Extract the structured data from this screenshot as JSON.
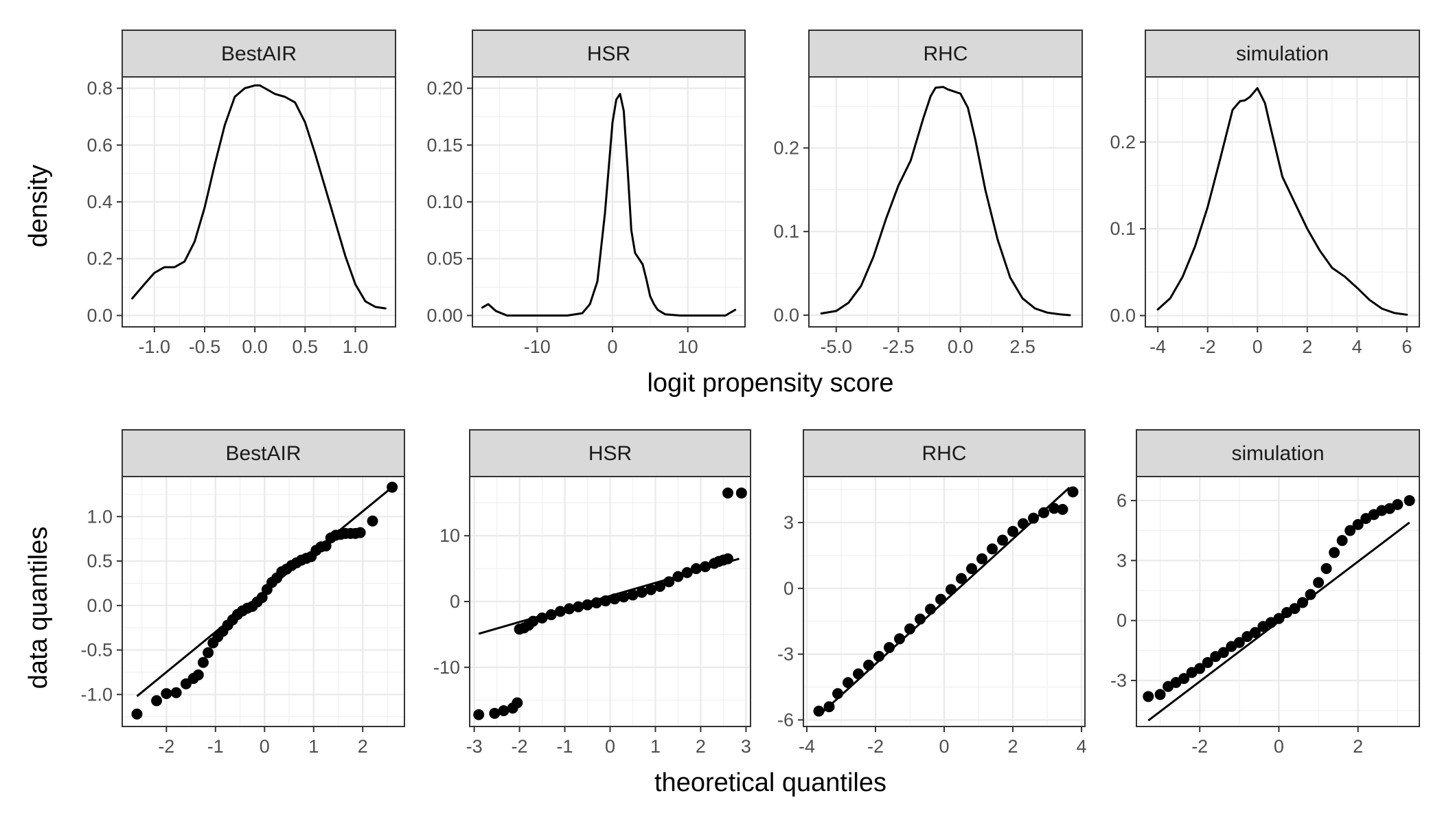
{
  "chart_data": [
    {
      "type": "line",
      "row": "density",
      "panel": "BestAIR",
      "ylabel": "density",
      "xlim": [
        -1.32,
        1.4
      ],
      "ylim": [
        -0.04,
        0.84
      ],
      "x_ticks": [
        -1.0,
        -0.5,
        0.0,
        0.5,
        1.0
      ],
      "x_tick_labels": [
        "-1.0",
        "-0.5",
        "0.0",
        "0.5",
        "1.0"
      ],
      "y_ticks": [
        0.0,
        0.2,
        0.4,
        0.6,
        0.8
      ],
      "y_tick_labels": [
        "0.0",
        "0.2",
        "0.4",
        "0.6",
        "0.8"
      ],
      "x": [
        -1.22,
        -1.1,
        -1.0,
        -0.9,
        -0.8,
        -0.7,
        -0.6,
        -0.5,
        -0.4,
        -0.3,
        -0.2,
        -0.1,
        0.0,
        0.05,
        0.1,
        0.2,
        0.3,
        0.4,
        0.5,
        0.6,
        0.7,
        0.8,
        0.9,
        1.0,
        1.1,
        1.2,
        1.3
      ],
      "y": [
        0.06,
        0.11,
        0.15,
        0.17,
        0.17,
        0.19,
        0.26,
        0.38,
        0.53,
        0.67,
        0.77,
        0.8,
        0.81,
        0.81,
        0.8,
        0.78,
        0.77,
        0.75,
        0.68,
        0.57,
        0.45,
        0.33,
        0.21,
        0.11,
        0.05,
        0.03,
        0.025
      ]
    },
    {
      "type": "line",
      "row": "density",
      "panel": "HSR",
      "xlim": [
        -18.6,
        17.6
      ],
      "ylim": [
        -0.01,
        0.21
      ],
      "x_ticks": [
        -10,
        0,
        10
      ],
      "x_tick_labels": [
        "-10",
        "0",
        "10"
      ],
      "y_ticks": [
        0.0,
        0.05,
        0.1,
        0.15,
        0.2
      ],
      "y_tick_labels": [
        "0.00",
        "0.05",
        "0.10",
        "0.15",
        "0.20"
      ],
      "x": [
        -17.3,
        -16.5,
        -15.5,
        -14,
        -10,
        -6,
        -4,
        -3,
        -2,
        -1,
        0,
        0.5,
        1,
        1.5,
        2,
        2.5,
        3,
        3.5,
        4,
        4.5,
        5,
        5.5,
        6,
        7,
        9,
        12,
        15,
        16.3
      ],
      "y": [
        0.007,
        0.01,
        0.004,
        0.0,
        0.0,
        0.0,
        0.002,
        0.01,
        0.03,
        0.09,
        0.17,
        0.19,
        0.195,
        0.18,
        0.13,
        0.075,
        0.055,
        0.05,
        0.045,
        0.032,
        0.017,
        0.01,
        0.005,
        0.001,
        0.0,
        0.0,
        0.0,
        0.005
      ]
    },
    {
      "type": "line",
      "row": "density",
      "panel": "RHC",
      "xlim": [
        -6.1,
        4.9
      ],
      "ylim": [
        -0.014,
        0.285
      ],
      "x_ticks": [
        -5.0,
        -2.5,
        0.0,
        2.5
      ],
      "x_tick_labels": [
        "-5.0",
        "-2.5",
        "0.0",
        "2.5"
      ],
      "y_ticks": [
        0.0,
        0.1,
        0.2
      ],
      "y_tick_labels": [
        "0.0",
        "0.1",
        "0.2"
      ],
      "x": [
        -5.6,
        -5.0,
        -4.5,
        -4.0,
        -3.5,
        -3.0,
        -2.5,
        -2.0,
        -1.5,
        -1.2,
        -1.0,
        -0.7,
        -0.5,
        -0.3,
        0.0,
        0.3,
        0.6,
        1.0,
        1.5,
        2.0,
        2.5,
        3.0,
        3.5,
        4.0,
        4.4
      ],
      "y": [
        0.002,
        0.005,
        0.015,
        0.035,
        0.07,
        0.115,
        0.155,
        0.185,
        0.235,
        0.262,
        0.272,
        0.273,
        0.27,
        0.268,
        0.265,
        0.248,
        0.21,
        0.15,
        0.09,
        0.045,
        0.02,
        0.008,
        0.003,
        0.001,
        0.0
      ]
    },
    {
      "type": "line",
      "row": "density",
      "panel": "simulation",
      "xlim": [
        -4.5,
        6.5
      ],
      "ylim": [
        -0.013,
        0.275
      ],
      "x_ticks": [
        -4,
        -2,
        0,
        2,
        4,
        6
      ],
      "x_tick_labels": [
        "-4",
        "-2",
        "0",
        "2",
        "4",
        "6"
      ],
      "y_ticks": [
        0.0,
        0.1,
        0.2
      ],
      "y_tick_labels": [
        "0.0",
        "0.1",
        "0.2"
      ],
      "x": [
        -4.0,
        -3.5,
        -3.0,
        -2.5,
        -2.0,
        -1.5,
        -1.0,
        -0.7,
        -0.5,
        -0.3,
        0.0,
        0.3,
        0.5,
        1.0,
        1.5,
        2.0,
        2.5,
        3.0,
        3.5,
        4.0,
        4.5,
        5.0,
        5.5,
        6.0
      ],
      "y": [
        0.007,
        0.02,
        0.045,
        0.08,
        0.125,
        0.18,
        0.237,
        0.247,
        0.248,
        0.252,
        0.262,
        0.245,
        0.22,
        0.16,
        0.13,
        0.1,
        0.075,
        0.055,
        0.045,
        0.032,
        0.018,
        0.008,
        0.003,
        0.001
      ]
    },
    {
      "type": "scatter",
      "row": "qq",
      "panel": "BestAIR",
      "ylabel": "data quantiles",
      "xlim": [
        -2.9,
        2.85
      ],
      "ylim": [
        -1.36,
        1.45
      ],
      "x_ticks": [
        -2,
        -1,
        0,
        1,
        2
      ],
      "x_tick_labels": [
        "-2",
        "-1",
        "0",
        "1",
        "2"
      ],
      "y_ticks": [
        -1.0,
        -0.5,
        0.0,
        0.5,
        1.0
      ],
      "y_tick_labels": [
        "-1.0",
        "-0.5",
        "0.0",
        "0.5",
        "1.0"
      ],
      "points_x": [
        -2.6,
        -2.2,
        -2.0,
        -1.8,
        -1.6,
        -1.45,
        -1.35,
        -1.25,
        -1.15,
        -1.05,
        -0.95,
        -0.85,
        -0.75,
        -0.65,
        -0.55,
        -0.45,
        -0.35,
        -0.25,
        -0.15,
        -0.05,
        0.05,
        0.15,
        0.25,
        0.35,
        0.45,
        0.55,
        0.65,
        0.75,
        0.85,
        0.95,
        1.05,
        1.15,
        1.25,
        1.35,
        1.45,
        1.55,
        1.65,
        1.75,
        1.85,
        1.95,
        2.2,
        2.6
      ],
      "points_y": [
        -1.22,
        -1.07,
        -0.99,
        -0.98,
        -0.88,
        -0.82,
        -0.78,
        -0.64,
        -0.53,
        -0.42,
        -0.35,
        -0.29,
        -0.22,
        -0.16,
        -0.1,
        -0.06,
        -0.03,
        -0.01,
        0.04,
        0.09,
        0.18,
        0.26,
        0.31,
        0.38,
        0.41,
        0.45,
        0.48,
        0.51,
        0.53,
        0.55,
        0.62,
        0.66,
        0.67,
        0.76,
        0.79,
        0.8,
        0.81,
        0.81,
        0.81,
        0.82,
        0.95,
        1.33
      ],
      "line": {
        "x": [
          -2.6,
          2.6
        ],
        "y": [
          -1.02,
          1.33
        ]
      }
    },
    {
      "type": "scatter",
      "row": "qq",
      "panel": "HSR",
      "xlim": [
        -3.1,
        3.1
      ],
      "ylim": [
        -19.0,
        19.0
      ],
      "x_ticks": [
        -3,
        -2,
        -1,
        0,
        1,
        2,
        3
      ],
      "x_tick_labels": [
        "-3",
        "-2",
        "-1",
        "0",
        "1",
        "2",
        "3"
      ],
      "y_ticks": [
        -10,
        0,
        10
      ],
      "y_tick_labels": [
        "-10",
        "0",
        "10"
      ],
      "points_x": [
        -2.9,
        -2.55,
        -2.35,
        -2.15,
        -2.05,
        -2.0,
        -1.9,
        -1.8,
        -1.7,
        -1.5,
        -1.3,
        -1.1,
        -0.9,
        -0.7,
        -0.5,
        -0.3,
        -0.1,
        0.1,
        0.3,
        0.5,
        0.7,
        0.9,
        1.1,
        1.3,
        1.5,
        1.7,
        1.9,
        2.1,
        2.3,
        2.4,
        2.5,
        2.6,
        2.6,
        2.9
      ],
      "points_y": [
        -17.2,
        -17.0,
        -16.6,
        -16.2,
        -15.4,
        -4.2,
        -4.0,
        -3.6,
        -3.0,
        -2.5,
        -2.0,
        -1.5,
        -1.1,
        -0.8,
        -0.5,
        -0.2,
        0.1,
        0.4,
        0.7,
        1.0,
        1.4,
        1.8,
        2.3,
        3.0,
        3.8,
        4.4,
        5.0,
        5.3,
        5.8,
        6.1,
        6.3,
        6.5,
        16.5,
        16.5
      ],
      "line": {
        "x": [
          -2.9,
          2.85
        ],
        "y": [
          -4.9,
          6.5
        ]
      }
    },
    {
      "type": "scatter",
      "row": "qq",
      "panel": "RHC",
      "xlim": [
        -4.1,
        4.1
      ],
      "ylim": [
        -6.3,
        5.1
      ],
      "x_ticks": [
        -4,
        -2,
        0,
        2,
        4
      ],
      "x_tick_labels": [
        "-4",
        "-2",
        "0",
        "2",
        "4"
      ],
      "y_ticks": [
        -6,
        -3,
        0,
        3
      ],
      "y_tick_labels": [
        "-6",
        "-3",
        "0",
        "3"
      ],
      "points_x": [
        -3.65,
        -3.35,
        -3.1,
        -2.8,
        -2.5,
        -2.2,
        -1.9,
        -1.6,
        -1.3,
        -1.0,
        -0.7,
        -0.4,
        -0.1,
        0.2,
        0.5,
        0.8,
        1.1,
        1.4,
        1.7,
        2.0,
        2.3,
        2.6,
        2.9,
        3.2,
        3.45,
        3.75
      ],
      "points_y": [
        -5.6,
        -5.4,
        -4.8,
        -4.3,
        -3.9,
        -3.5,
        -3.1,
        -2.7,
        -2.3,
        -1.85,
        -1.4,
        -0.95,
        -0.5,
        -0.05,
        0.45,
        0.9,
        1.35,
        1.8,
        2.2,
        2.6,
        2.95,
        3.2,
        3.45,
        3.65,
        3.6,
        4.4
      ],
      "line": {
        "x": [
          -3.65,
          3.65
        ],
        "y": [
          -5.8,
          4.6
        ]
      }
    },
    {
      "type": "scatter",
      "row": "qq",
      "panel": "simulation",
      "xlim": [
        -3.6,
        3.55
      ],
      "ylim": [
        -5.3,
        7.2
      ],
      "x_ticks": [
        -2,
        0,
        2
      ],
      "x_tick_labels": [
        "-2",
        "0",
        "2"
      ],
      "y_ticks": [
        -3,
        0,
        3,
        6
      ],
      "y_tick_labels": [
        "-3",
        "0",
        "3",
        "6"
      ],
      "points_x": [
        -3.3,
        -3.0,
        -2.8,
        -2.6,
        -2.4,
        -2.2,
        -2.0,
        -1.8,
        -1.6,
        -1.4,
        -1.2,
        -1.0,
        -0.8,
        -0.6,
        -0.4,
        -0.2,
        0.0,
        0.2,
        0.4,
        0.6,
        0.8,
        1.0,
        1.2,
        1.4,
        1.6,
        1.8,
        2.0,
        2.2,
        2.4,
        2.6,
        2.8,
        3.0,
        3.3
      ],
      "points_y": [
        -3.8,
        -3.7,
        -3.3,
        -3.1,
        -2.9,
        -2.6,
        -2.4,
        -2.1,
        -1.8,
        -1.6,
        -1.3,
        -1.1,
        -0.8,
        -0.6,
        -0.3,
        -0.1,
        0.1,
        0.4,
        0.6,
        0.9,
        1.3,
        1.9,
        2.6,
        3.4,
        4.0,
        4.5,
        4.8,
        5.1,
        5.3,
        5.5,
        5.6,
        5.8,
        6.0
      ],
      "line": {
        "x": [
          -3.3,
          3.3
        ],
        "y": [
          -5.0,
          4.9
        ]
      }
    }
  ],
  "shared": {
    "density_xlabel": "logit propensity score",
    "qq_xlabel": "theoretical quantiles"
  }
}
